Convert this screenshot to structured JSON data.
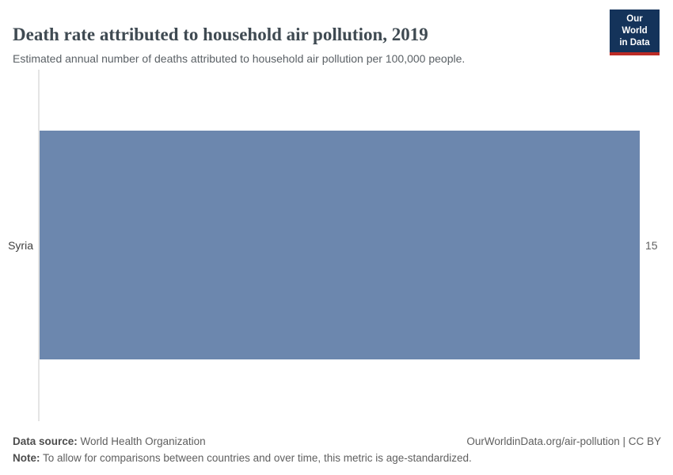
{
  "header": {
    "title": "Death rate attributed to household air pollution, 2019",
    "subtitle": "Estimated annual number of deaths attributed to household air pollution per 100,000 people.",
    "logo": {
      "line1": "Our World",
      "line2": "in Data",
      "bg_color": "#14335a",
      "accent_color": "#bc2b26"
    }
  },
  "chart_data": {
    "type": "bar",
    "orientation": "horizontal",
    "title": "Death rate attributed to household air pollution, 2019",
    "categories": [
      "Syria"
    ],
    "values": [
      15
    ],
    "value_labels": [
      "15"
    ],
    "xlim": [
      0,
      15
    ],
    "bar_color": "#6c87ae",
    "grid": false,
    "legend": "none"
  },
  "footer": {
    "source_label": "Data source:",
    "source_text": "World Health Organization",
    "note_label": "Note:",
    "note_text": "To allow for comparisons between countries and over time, this metric is age-standardized.",
    "attribution": "OurWorldinData.org/air-pollution | CC BY"
  }
}
